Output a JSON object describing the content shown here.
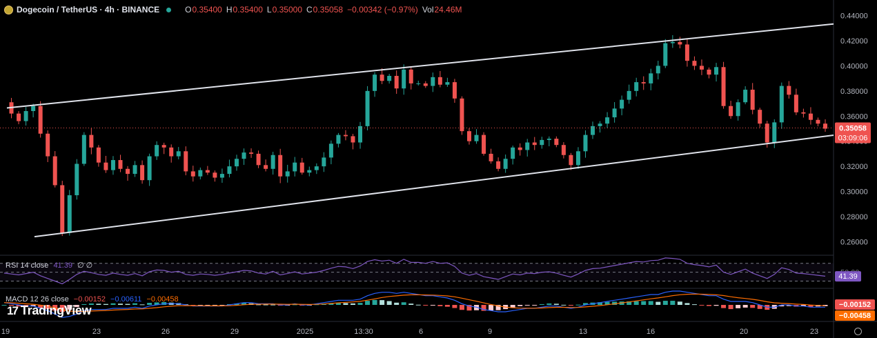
{
  "header": {
    "title": "Dogecoin / TetherUS · 4h · BINANCE",
    "open_label": "O",
    "open": "0.35400",
    "high_label": "H",
    "high": "0.35400",
    "low_label": "L",
    "low": "0.35000",
    "close_label": "C",
    "close": "0.35058",
    "change": "−0.00342 (−0.97%)",
    "vol_label": "Vol",
    "vol": "24.46M"
  },
  "rsi": {
    "label": "RSI 14 close",
    "value": "41.39",
    "extra": "∅ ∅",
    "badge": "41.39",
    "ref_label": "50.00"
  },
  "macd": {
    "label": "MACD 12 26 close",
    "v1": "−0.00152",
    "v2": "−0.00611",
    "v3": "−0.00458",
    "badge1": "−0.00152",
    "badge2": "−0.00458"
  },
  "price_badge": {
    "price": "0.35058",
    "countdown": "03:09:06"
  },
  "logo_text": "TradingView",
  "colors": {
    "up": "#26a69a",
    "down": "#ef5350",
    "rsi": "#7e57c2",
    "macd": "#2962ff",
    "signal": "#ff6d00"
  },
  "chart_data": {
    "type": "candlestick",
    "y_axis_ticks": [
      "0.44000",
      "0.42000",
      "0.40000",
      "0.38000",
      "0.36000",
      "0.34000",
      "0.32000",
      "0.30000",
      "0.28000",
      "0.26000"
    ],
    "x_axis_ticks": [
      "19",
      "23",
      "26",
      "29",
      "2025",
      "13:30",
      "6",
      "9",
      "13",
      "16",
      "20",
      "23"
    ],
    "ylim": [
      0.252,
      0.448
    ],
    "last_price": 0.35058,
    "channel": {
      "upper": [
        {
          "x": "19",
          "y": 0.3665
        },
        {
          "x": "24 end",
          "y": 0.4333
        }
      ],
      "lower": [
        {
          "x": "20",
          "y": 0.264
        },
        {
          "x": "24 end",
          "y": 0.3448
        }
      ]
    },
    "close_path": [
      0.371,
      0.362,
      0.356,
      0.364,
      0.368,
      0.346,
      0.328,
      0.305,
      0.267,
      0.297,
      0.322,
      0.345,
      0.335,
      0.323,
      0.317,
      0.325,
      0.318,
      0.314,
      0.321,
      0.309,
      0.328,
      0.337,
      0.335,
      0.328,
      0.332,
      0.316,
      0.312,
      0.317,
      0.315,
      0.311,
      0.314,
      0.32,
      0.326,
      0.331,
      0.33,
      0.321,
      0.318,
      0.329,
      0.312,
      0.316,
      0.323,
      0.315,
      0.317,
      0.32,
      0.327,
      0.338,
      0.345,
      0.344,
      0.339,
      0.352,
      0.38,
      0.393,
      0.388,
      0.392,
      0.382,
      0.397,
      0.386,
      0.386,
      0.384,
      0.391,
      0.385,
      0.387,
      0.374,
      0.348,
      0.34,
      0.345,
      0.33,
      0.324,
      0.318,
      0.326,
      0.335,
      0.333,
      0.339,
      0.337,
      0.341,
      0.342,
      0.337,
      0.329,
      0.321,
      0.332,
      0.345,
      0.352,
      0.354,
      0.359,
      0.366,
      0.373,
      0.38,
      0.387,
      0.386,
      0.394,
      0.4,
      0.418,
      0.419,
      0.417,
      0.404,
      0.4,
      0.397,
      0.393,
      0.399,
      0.368,
      0.36,
      0.371,
      0.381,
      0.365,
      0.354,
      0.339,
      0.355,
      0.384,
      0.377,
      0.363,
      0.362,
      0.357,
      0.354,
      0.35
    ]
  },
  "rsi_data": {
    "ylim": [
      20,
      85
    ],
    "ref_levels": [
      70,
      50,
      30
    ],
    "path": [
      48,
      46,
      44,
      47,
      50,
      42,
      36,
      30,
      24,
      34,
      45,
      52,
      49,
      45,
      43,
      48,
      45,
      43,
      47,
      42,
      51,
      55,
      54,
      50,
      52,
      45,
      43,
      46,
      45,
      43,
      45,
      48,
      51,
      54,
      53,
      48,
      46,
      52,
      44,
      47,
      51,
      46,
      48,
      50,
      54,
      59,
      63,
      62,
      58,
      64,
      74,
      78,
      75,
      77,
      70,
      79,
      72,
      72,
      70,
      74,
      70,
      71,
      63,
      48,
      43,
      47,
      40,
      37,
      34,
      40,
      46,
      44,
      48,
      47,
      50,
      51,
      48,
      43,
      39,
      46,
      54,
      58,
      59,
      62,
      65,
      68,
      71,
      74,
      73,
      76,
      77,
      82,
      81,
      79,
      70,
      67,
      65,
      62,
      66,
      50,
      45,
      51,
      57,
      48,
      42,
      36,
      45,
      60,
      56,
      48,
      47,
      45,
      43,
      41
    ]
  },
  "macd_data": {
    "ylim": [
      -0.012,
      0.012
    ],
    "line_path": [
      0.002,
      0.001,
      0.0,
      -0.001,
      -0.001,
      -0.003,
      -0.005,
      -0.008,
      -0.011,
      -0.01,
      -0.008,
      -0.005,
      -0.004,
      -0.004,
      -0.004,
      -0.003,
      -0.003,
      -0.003,
      -0.002,
      -0.003,
      -0.001,
      0.0,
      0.001,
      0.001,
      0.001,
      0.0,
      -0.001,
      -0.001,
      -0.001,
      -0.001,
      -0.001,
      0.0,
      0.001,
      0.002,
      0.002,
      0.001,
      0.001,
      0.001,
      0.0,
      0.0,
      0.001,
      0.0,
      0.0,
      0.001,
      0.002,
      0.003,
      0.004,
      0.004,
      0.004,
      0.005,
      0.008,
      0.01,
      0.011,
      0.011,
      0.01,
      0.011,
      0.01,
      0.009,
      0.008,
      0.008,
      0.007,
      0.006,
      0.004,
      0.001,
      -0.001,
      -0.002,
      -0.004,
      -0.005,
      -0.006,
      -0.006,
      -0.005,
      -0.004,
      -0.003,
      -0.003,
      -0.002,
      -0.001,
      -0.001,
      -0.002,
      -0.003,
      -0.002,
      0.0,
      0.001,
      0.002,
      0.003,
      0.004,
      0.005,
      0.006,
      0.007,
      0.008,
      0.009,
      0.009,
      0.011,
      0.012,
      0.012,
      0.011,
      0.01,
      0.009,
      0.008,
      0.008,
      0.005,
      0.003,
      0.003,
      0.003,
      0.002,
      0.0,
      -0.002,
      -0.002,
      0.0,
      0.0,
      -0.001,
      -0.001,
      -0.002,
      -0.002,
      -0.002
    ]
  }
}
